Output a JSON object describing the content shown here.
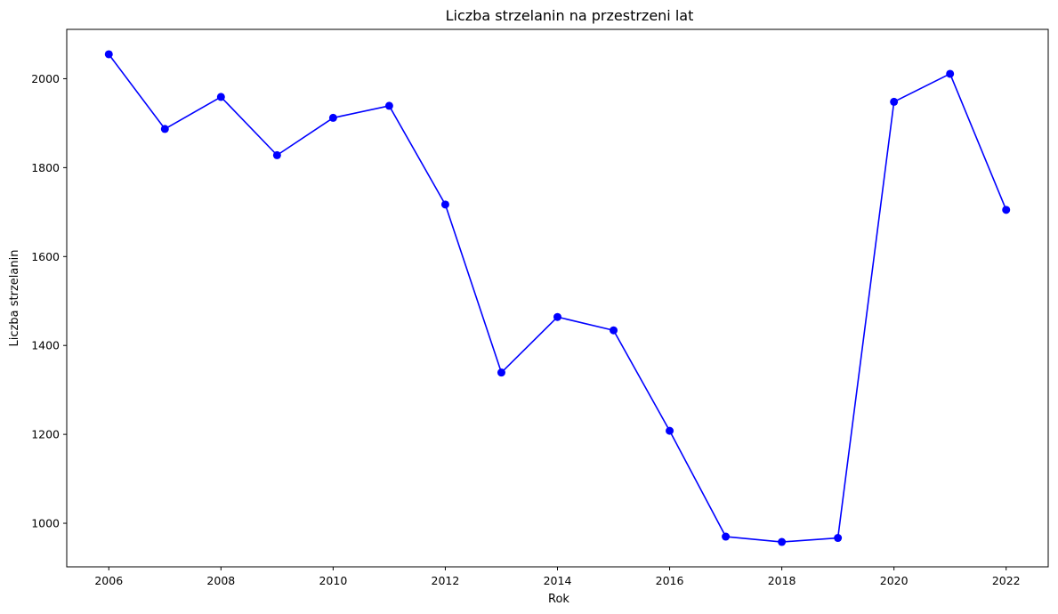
{
  "chart_data": {
    "type": "line",
    "title": "Liczba strzelanin na przestrzeni lat",
    "xlabel": "Rok",
    "ylabel": "Liczba strzelanin",
    "x": [
      2006,
      2007,
      2008,
      2009,
      2010,
      2011,
      2012,
      2013,
      2014,
      2015,
      2016,
      2017,
      2018,
      2019,
      2020,
      2021,
      2022
    ],
    "series": [
      {
        "values": [
          2055,
          1887,
          1959,
          1828,
          1912,
          1939,
          1717,
          1339,
          1464,
          1434,
          1208,
          970,
          958,
          967,
          1948,
          2011,
          1705
        ],
        "color": "#0000ff"
      }
    ],
    "xlim": [
      2005.25,
      2022.75
    ],
    "ylim": [
      902,
      2111
    ],
    "xticks": [
      "2006",
      "2008",
      "2010",
      "2012",
      "2014",
      "2016",
      "2018",
      "2020",
      "2022"
    ],
    "yticks": [
      "1000",
      "1200",
      "1400",
      "1600",
      "1800",
      "2000"
    ],
    "grid": false,
    "marker": "circle"
  }
}
